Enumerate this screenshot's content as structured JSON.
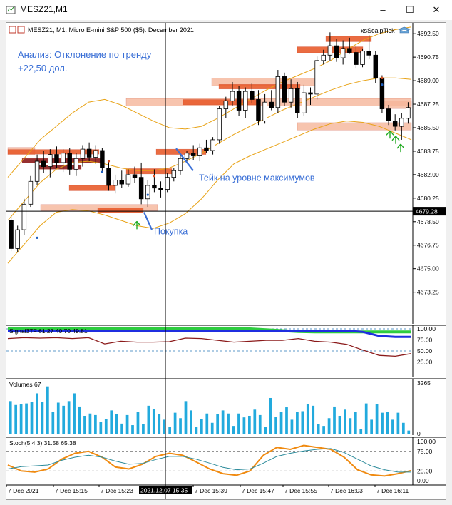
{
  "window": {
    "title": "MESZ21,M1",
    "controls": {
      "minimize": "–",
      "maximize": "☐",
      "close": "✕"
    }
  },
  "chart_header": {
    "symbol_line": "MESZ21, M1:  Micro E-mini S&P 500 ($5): December 2021",
    "indicator_label": "xsScalpTick"
  },
  "annotations": {
    "analysis_line1": "Анализ: Отклонение по тренду",
    "analysis_line2": "+22,50 дол.",
    "take_profit": "Тейк на уровне максимумов",
    "buy": "Покупка"
  },
  "colors": {
    "accent_text": "#3a6fd6",
    "bull": "#000000",
    "bear": "#000000",
    "band": "#e8a317",
    "zone_light": "#f5b59a",
    "zone_dark": "#e85c2c",
    "zone_maroon": "#8b1a1a",
    "signal_green": "#2ecc40",
    "signal_blue": "#1f2ee0",
    "signal_red": "#8b1a1a",
    "volume": "#22aadd",
    "stoch_orange": "#f08a10",
    "stoch_teal": "#2a8a9a",
    "arrow_buy": "#22aa22"
  },
  "crosshair": {
    "price_label": "4679.28",
    "time_label": "2021.12.07 15:35"
  },
  "chart_data": [
    {
      "type": "candlestick",
      "title": "MESZ21, M1:  Micro E-mini S&P 500 ($5): December 2021",
      "ylim": [
        4671.0,
        4693.2
      ],
      "y_ticks": [
        "4692.50",
        "4690.75",
        "4689.00",
        "4687.25",
        "4685.50",
        "4683.75",
        "4682.00",
        "4680.25",
        "4678.50",
        "4676.75",
        "4675.00",
        "4673.25"
      ],
      "x_ticks": [
        "7 Dec 2021",
        "7 Dec 15:15",
        "7 Dec 15:23",
        "2021.12.07 15:35",
        "7 Dec 15:39",
        "7 Dec 15:47",
        "7 Dec 15:55",
        "7 Dec 16:03",
        "7 Dec 16:11"
      ],
      "candles": [
        [
          4678.6,
          4678.9,
          4676.3,
          4676.5
        ],
        [
          4676.5,
          4678.2,
          4676.2,
          4677.9
        ],
        [
          4677.9,
          4680.2,
          4677.5,
          4679.8
        ],
        [
          4679.8,
          4681.9,
          4679.6,
          4681.5
        ],
        [
          4681.5,
          4683.5,
          4681.2,
          4683.0
        ],
        [
          4683.0,
          4683.8,
          4682.1,
          4682.6
        ],
        [
          4682.6,
          4683.9,
          4681.8,
          4683.5
        ],
        [
          4683.5,
          4684.1,
          4682.5,
          4682.9
        ],
        [
          4682.9,
          4683.9,
          4682.2,
          4683.6
        ],
        [
          4683.6,
          4684.0,
          4682.0,
          4682.4
        ],
        [
          4682.4,
          4683.6,
          4681.9,
          4683.2
        ],
        [
          4683.2,
          4684.2,
          4682.6,
          4683.9
        ],
        [
          4683.9,
          4684.4,
          4683.0,
          4683.3
        ],
        [
          4683.3,
          4684.2,
          4682.8,
          4683.8
        ],
        [
          4683.8,
          4684.0,
          4682.2,
          4682.5
        ],
        [
          4682.5,
          4683.0,
          4680.8,
          4681.2
        ],
        [
          4681.2,
          4682.0,
          4680.6,
          4681.6
        ],
        [
          4681.6,
          4682.3,
          4681.0,
          4681.3
        ],
        [
          4681.3,
          4682.4,
          4681.1,
          4682.0
        ],
        [
          4682.0,
          4682.6,
          4681.4,
          4681.8
        ],
        [
          4681.8,
          4682.9,
          4679.8,
          4680.2
        ],
        [
          4680.2,
          4681.6,
          4679.6,
          4681.2
        ],
        [
          4681.2,
          4682.4,
          4680.7,
          4681.0
        ],
        [
          4681.0,
          4681.5,
          4680.3,
          4680.9
        ],
        [
          4680.9,
          4682.1,
          4680.7,
          4681.8
        ],
        [
          4681.8,
          4682.5,
          4681.5,
          4682.3
        ],
        [
          4682.3,
          4683.5,
          4682.0,
          4683.2
        ],
        [
          4683.2,
          4683.8,
          4682.9,
          4683.6
        ],
        [
          4683.6,
          4684.2,
          4683.1,
          4683.4
        ],
        [
          4683.4,
          4684.3,
          4683.0,
          4684.0
        ],
        [
          4684.0,
          4684.6,
          4683.6,
          4683.8
        ],
        [
          4683.8,
          4684.8,
          4683.5,
          4684.6
        ],
        [
          4684.6,
          4687.1,
          4684.3,
          4686.9
        ],
        [
          4686.9,
          4687.8,
          4686.2,
          4687.5
        ],
        [
          4687.5,
          4688.9,
          4687.1,
          4688.2
        ],
        [
          4688.2,
          4688.6,
          4686.4,
          4686.8
        ],
        [
          4686.8,
          4688.5,
          4686.2,
          4688.2
        ],
        [
          4688.2,
          4688.8,
          4687.3,
          4687.6
        ],
        [
          4687.6,
          4688.3,
          4685.7,
          4686.0
        ],
        [
          4686.0,
          4688.0,
          4685.8,
          4687.4
        ],
        [
          4687.4,
          4688.3,
          4686.8,
          4687.0
        ],
        [
          4687.0,
          4689.8,
          4686.6,
          4689.3
        ],
        [
          4689.3,
          4689.6,
          4687.1,
          4687.4
        ],
        [
          4687.4,
          4689.1,
          4687.0,
          4688.4
        ],
        [
          4688.4,
          4688.9,
          4686.2,
          4686.6
        ],
        [
          4686.6,
          4688.7,
          4686.4,
          4688.1
        ],
        [
          4688.1,
          4688.5,
          4687.2,
          4688.0
        ],
        [
          4688.0,
          4690.8,
          4687.6,
          4690.5
        ],
        [
          4690.5,
          4691.3,
          4690.2,
          4690.9
        ],
        [
          4690.9,
          4692.6,
          4690.5,
          4691.6
        ],
        [
          4691.6,
          4692.1,
          4690.4,
          4690.7
        ],
        [
          4690.7,
          4692.0,
          4690.2,
          4691.4
        ],
        [
          4691.4,
          4692.2,
          4691.0,
          4691.1
        ],
        [
          4691.1,
          4691.6,
          4689.9,
          4690.2
        ],
        [
          4690.2,
          4691.4,
          4690.0,
          4691.2
        ],
        [
          4691.2,
          4692.4,
          4690.6,
          4690.9
        ],
        [
          4690.9,
          4691.2,
          4688.8,
          4689.2
        ],
        [
          4689.2,
          4689.4,
          4686.6,
          4686.9
        ],
        [
          4686.9,
          4687.2,
          4685.7,
          4686.0
        ],
        [
          4686.0,
          4686.5,
          4685.3,
          4685.6
        ],
        [
          4685.6,
          4686.6,
          4684.6,
          4686.2
        ],
        [
          4686.2,
          4687.4,
          4685.8,
          4687.0
        ]
      ],
      "bands": {
        "upper": [
          4681.8,
          4683.2,
          4684.6,
          4685.6,
          4686.6,
          4687.4,
          4687.6,
          4687.2,
          4686.6,
          4686.0,
          4685.5,
          4685.4,
          4685.6,
          4686.2,
          4686.9,
          4687.6,
          4688.3,
          4688.9,
          4689.4,
          4689.9,
          4690.5,
          4691.3,
          4692.0,
          4692.5,
          4692.8,
          4693.0
        ],
        "middle": [
          4678.6,
          4680.0,
          4681.4,
          4682.4,
          4682.9,
          4683.0,
          4682.8,
          4682.5,
          4682.3,
          4682.3,
          4682.5,
          4683.0,
          4683.6,
          4684.3,
          4685.0,
          4685.6,
          4686.2,
          4686.8,
          4687.3,
          4687.8,
          4688.3,
          4688.7,
          4689.0,
          4689.2,
          4689.2,
          4689.1
        ],
        "lower": [
          4675.4,
          4676.8,
          4678.2,
          4679.2,
          4679.4,
          4679.3,
          4679.0,
          4678.6,
          4678.2,
          4678.0,
          4678.4,
          4679.1,
          4680.2,
          4681.6,
          4682.8,
          4683.4,
          4683.9,
          4684.4,
          4684.9,
          4685.4,
          4685.8,
          4686.0,
          4685.9,
          4685.6,
          4685.1,
          4684.6
        ]
      }
    },
    {
      "type": "line",
      "title": "Signal3TF 61.27 40.70 49.81",
      "ylim": [
        0,
        100
      ],
      "y_ticks": [
        "100.00",
        "75.00",
        "50.00",
        "25.00"
      ],
      "series": [
        {
          "name": "",
          "values": [
            100,
            100,
            100,
            100,
            100,
            100,
            100,
            100,
            100,
            100,
            100,
            100,
            100,
            100,
            100,
            100,
            98,
            96,
            94,
            93,
            93,
            93,
            93,
            93,
            93,
            93
          ]
        },
        {
          "name": "",
          "values": [
            96,
            96,
            96,
            96,
            96,
            96,
            96,
            96,
            96,
            96,
            96,
            96,
            96,
            96,
            96,
            96,
            96,
            96,
            96,
            96,
            96,
            96,
            93,
            84,
            82,
            82
          ]
        },
        {
          "name": "",
          "values": [
            78,
            80,
            79,
            80,
            78,
            80,
            66,
            72,
            70,
            70,
            71,
            79,
            78,
            74,
            70,
            72,
            74,
            74,
            78,
            72,
            70,
            65,
            52,
            40,
            38,
            44
          ]
        }
      ]
    },
    {
      "type": "bar",
      "title": "Volumes 67",
      "ylim": [
        0,
        3265
      ],
      "y_ticks": [
        "3265",
        "0"
      ],
      "values": [
        2100,
        1850,
        1900,
        1950,
        2050,
        2600,
        2050,
        3050,
        1400,
        2000,
        1800,
        2100,
        2600,
        1750,
        1150,
        1300,
        1200,
        750,
        950,
        1500,
        1250,
        650,
        1200,
        550,
        1400,
        600,
        1800,
        1600,
        1250,
        900,
        450,
        1350,
        1000,
        2100,
        1500,
        450,
        950,
        1300,
        700,
        1250,
        1500,
        1300,
        500,
        1300,
        1050,
        1150,
        1550,
        1200,
        450,
        2300,
        1100,
        1400,
        1700,
        900,
        1400,
        1450,
        1900,
        1800,
        600,
        500,
        1000,
        1750,
        1150,
        1550,
        1000,
        1400,
        300,
        1950,
        900,
        1900,
        1350,
        1400,
        900,
        1350,
        700,
        200
      ]
    },
    {
      "type": "line",
      "title": "Stoch(5,4,3) 31.58 65.38",
      "ylim": [
        0,
        100
      ],
      "y_ticks": [
        "100.00",
        "75.00",
        "25.00",
        "0.00"
      ],
      "series": [
        {
          "name": "",
          "values": [
            40,
            25,
            22,
            30,
            55,
            70,
            75,
            60,
            35,
            30,
            42,
            62,
            70,
            65,
            48,
            30,
            18,
            14,
            25,
            65,
            85,
            80,
            90,
            85,
            80,
            60,
            28,
            15,
            12,
            18,
            26
          ]
        },
        {
          "name": "",
          "values": [
            30,
            36,
            38,
            40,
            52,
            60,
            65,
            60,
            50,
            42,
            44,
            54,
            62,
            62,
            55,
            45,
            34,
            28,
            30,
            45,
            62,
            70,
            76,
            80,
            82,
            72,
            55,
            38,
            28,
            22,
            22
          ]
        }
      ]
    }
  ]
}
